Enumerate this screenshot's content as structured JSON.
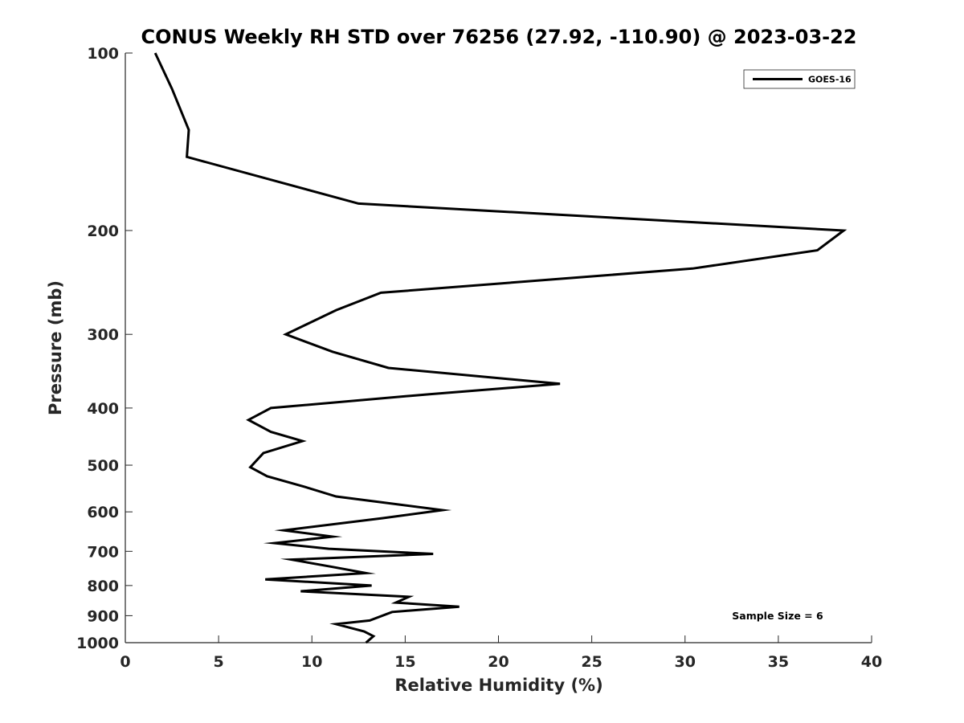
{
  "chart_data": {
    "type": "line",
    "title": "CONUS Weekly RH STD over 76256 (27.92, -110.90) @ 2023-03-22",
    "xlabel": "Relative Humidity (%)",
    "ylabel": "Pressure (mb)",
    "xlim": [
      0,
      40
    ],
    "ylim": [
      100,
      1000
    ],
    "yscale": "log",
    "yaxis_direction": "reversed",
    "xticks": [
      0,
      5,
      10,
      15,
      20,
      25,
      30,
      35,
      40
    ],
    "xtick_labels": [
      "0",
      "5",
      "10",
      "15",
      "20",
      "25",
      "30",
      "35",
      "40"
    ],
    "yticks": [
      100,
      200,
      300,
      400,
      500,
      600,
      700,
      800,
      900,
      1000
    ],
    "ytick_labels": [
      "100",
      "200",
      "300",
      "400",
      "500",
      "600",
      "700",
      "800",
      "900",
      "1000"
    ],
    "grid": false,
    "legend_position": "top-right",
    "annotation": "Sample Size = 6",
    "series": [
      {
        "name": "GOES-16",
        "color": "#000000",
        "points": [
          [
            1.6,
            100
          ],
          [
            2.5,
            115
          ],
          [
            3.4,
            135
          ],
          [
            3.3,
            150
          ],
          [
            12.5,
            180
          ],
          [
            38.5,
            200
          ],
          [
            37.1,
            216
          ],
          [
            30.4,
            232
          ],
          [
            13.7,
            255
          ],
          [
            11.3,
            273
          ],
          [
            8.6,
            300
          ],
          [
            11.1,
            321
          ],
          [
            14.1,
            342
          ],
          [
            23.3,
            364
          ],
          [
            16.3,
            379
          ],
          [
            7.8,
            400
          ],
          [
            6.6,
            419
          ],
          [
            7.8,
            439
          ],
          [
            9.5,
            455
          ],
          [
            7.4,
            477
          ],
          [
            6.7,
            504
          ],
          [
            7.6,
            522
          ],
          [
            9.6,
            544
          ],
          [
            11.3,
            565
          ],
          [
            17.0,
            596
          ],
          [
            13.8,
            615
          ],
          [
            8.5,
            645
          ],
          [
            11.1,
            661
          ],
          [
            8.0,
            678
          ],
          [
            10.9,
            693
          ],
          [
            16.5,
            707
          ],
          [
            8.9,
            723
          ],
          [
            11.1,
            744
          ],
          [
            12.9,
            762
          ],
          [
            7.5,
            781
          ],
          [
            13.2,
            800
          ],
          [
            9.4,
            818
          ],
          [
            15.2,
            836
          ],
          [
            14.5,
            855
          ],
          [
            17.9,
            869
          ],
          [
            14.3,
            887
          ],
          [
            13.1,
            917
          ],
          [
            11.3,
            930
          ],
          [
            12.8,
            957
          ],
          [
            13.3,
            975
          ],
          [
            12.9,
            1000
          ]
        ]
      }
    ]
  }
}
